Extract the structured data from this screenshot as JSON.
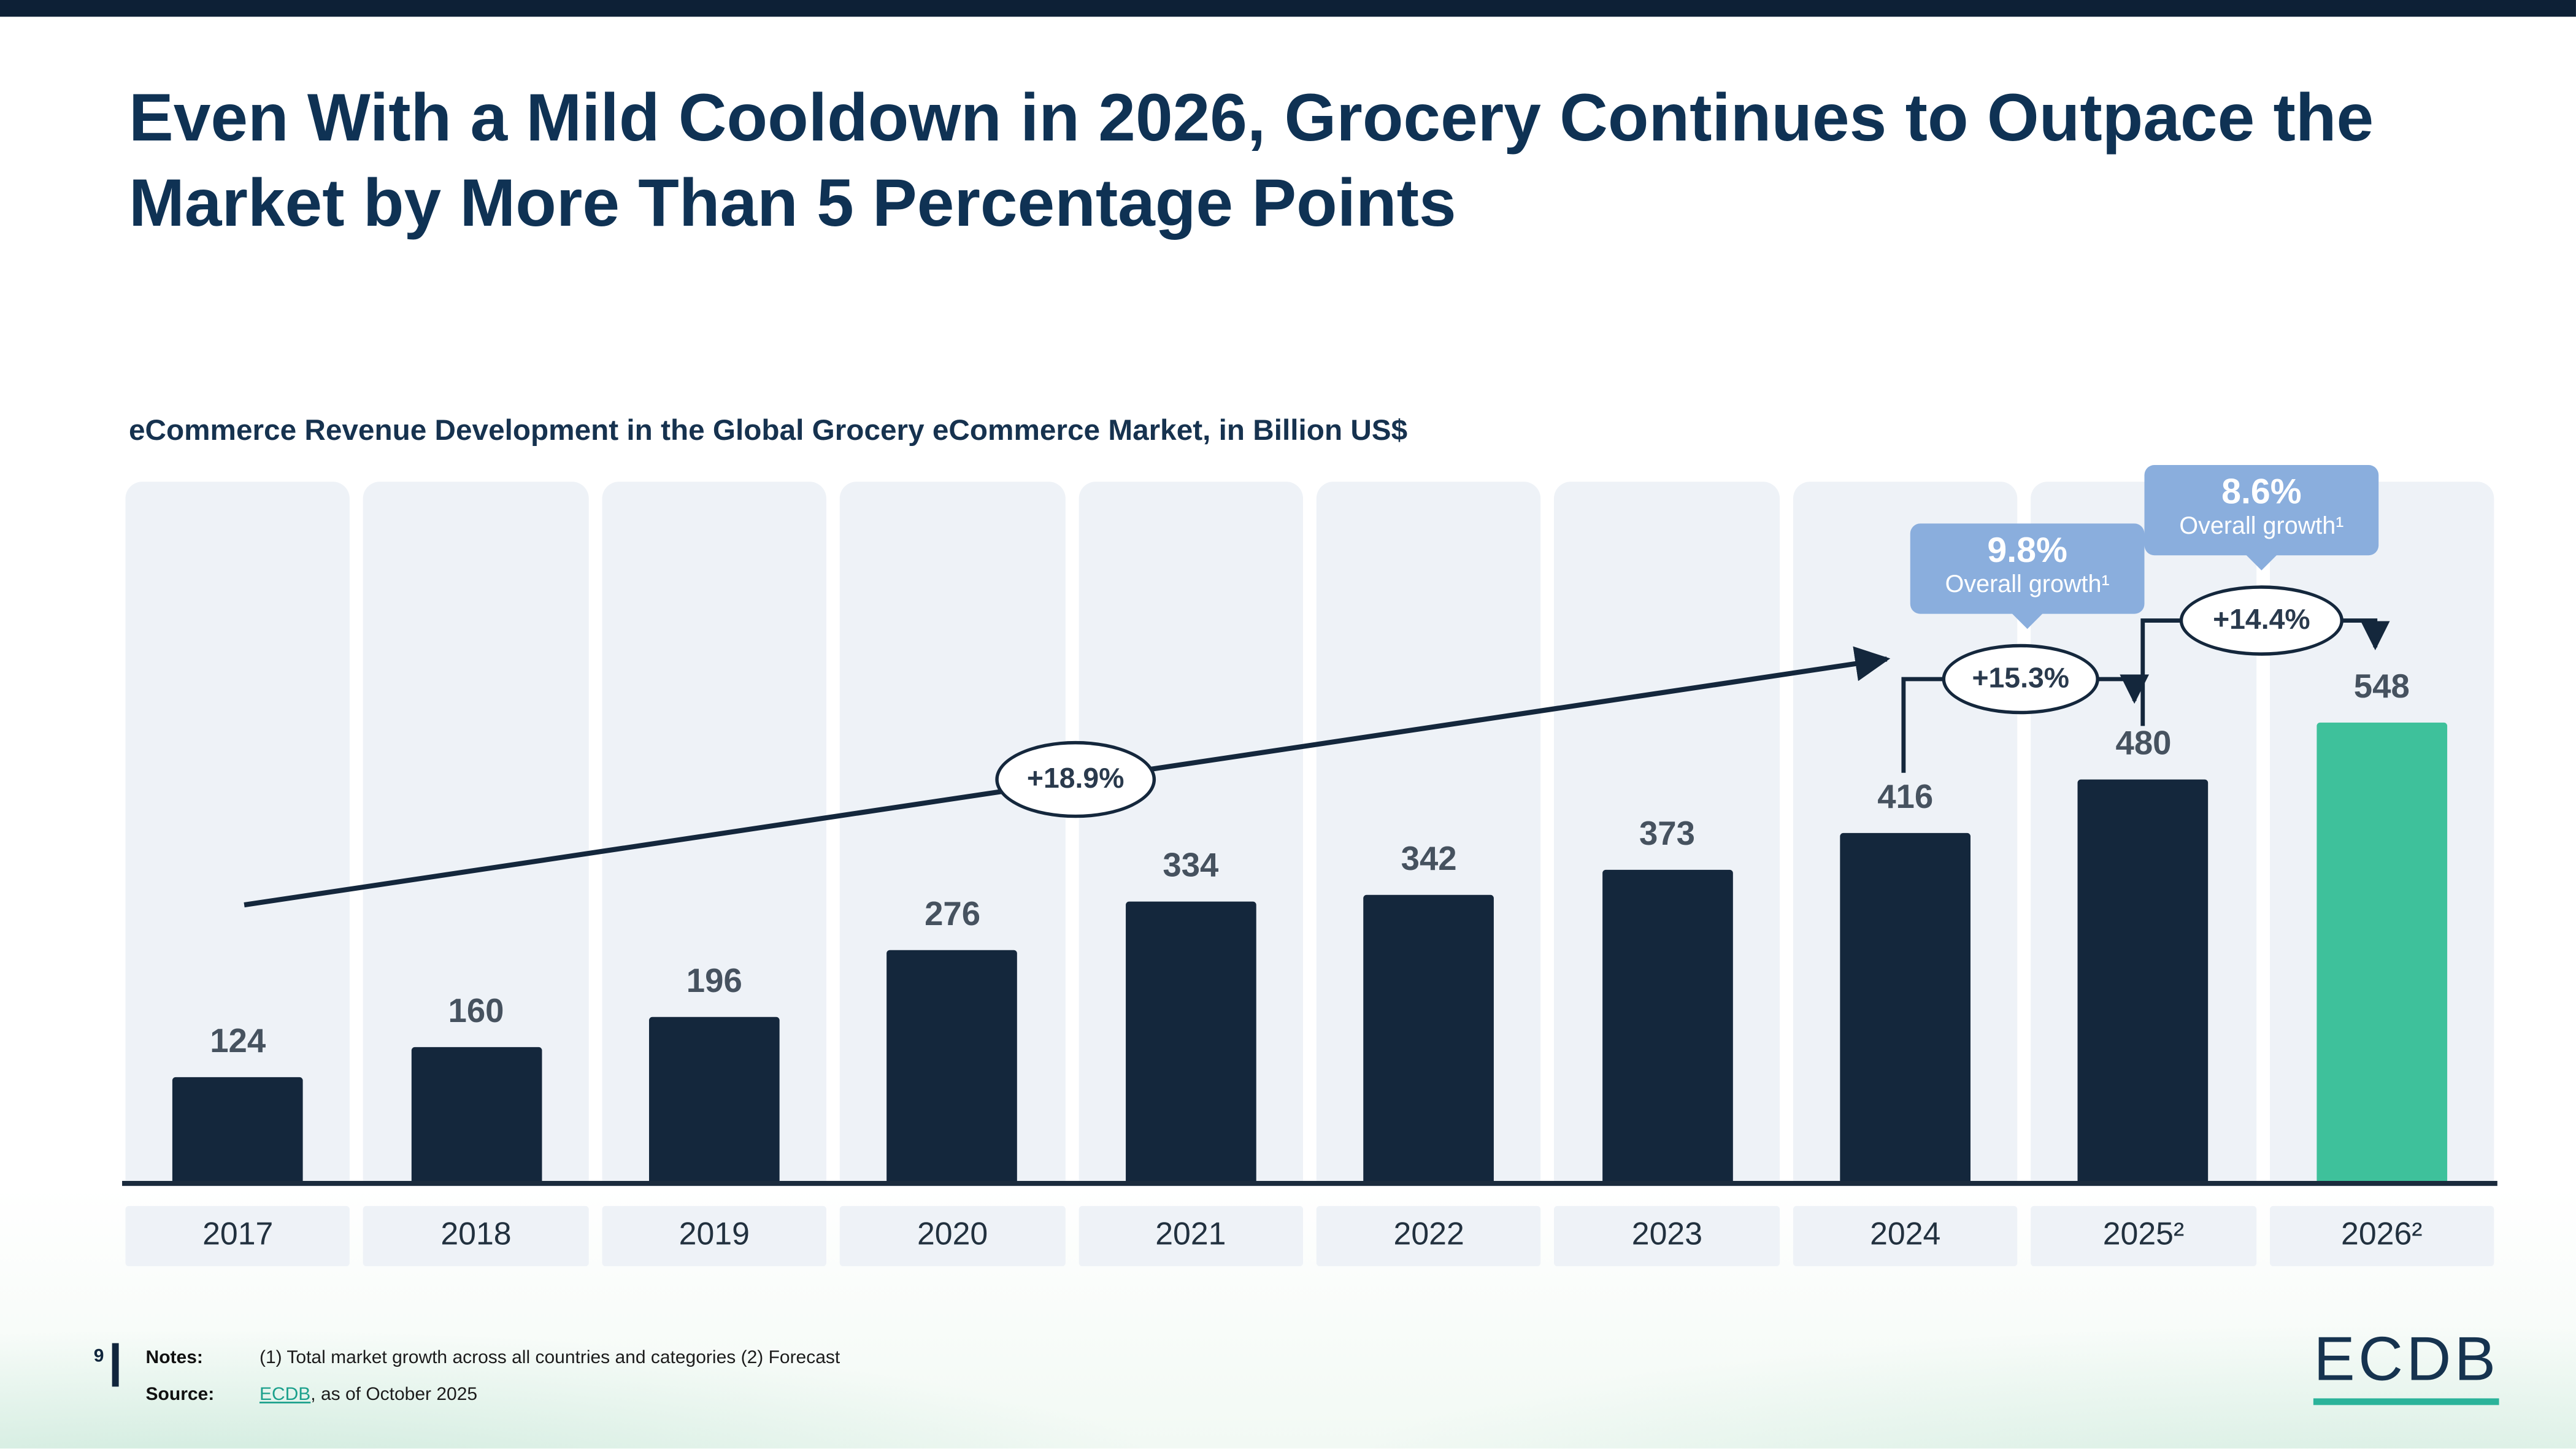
{
  "header": {
    "title": "Even With a Mild Cooldown in 2026, Grocery Continues to Outpace the Market by More Than 5 Percentage Points"
  },
  "chart_data": {
    "type": "bar",
    "title": "eCommerce Revenue Development in the Global Grocery eCommerce Market, in Billion US$",
    "categories": [
      "2017",
      "2018",
      "2019",
      "2020",
      "2021",
      "2022",
      "2023",
      "2024",
      "2025²",
      "2026²"
    ],
    "values": [
      124,
      160,
      196,
      276,
      334,
      342,
      373,
      416,
      480,
      548
    ],
    "unit": "Billion US$",
    "ylim": [
      0,
      560
    ],
    "grid": false,
    "legend": "none",
    "highlight_category": "2026²",
    "annotations": {
      "cagr_arrow": {
        "label": "+18.9%",
        "from_category": "2017",
        "to_category": "2024"
      },
      "step_2024_2025": {
        "label": "+15.3%"
      },
      "step_2025_2026": {
        "label": "+14.4%"
      }
    },
    "callouts": [
      {
        "value": "9.8%",
        "caption": "Overall growth¹",
        "anchor": "2025²"
      },
      {
        "value": "8.6%",
        "caption": "Overall growth¹",
        "anchor": "2026²"
      }
    ]
  },
  "colors": {
    "navy": "#14273C",
    "title_navy": "#0F3254",
    "teal": "#3EC19B",
    "callout_blue": "#8AAEDD",
    "column_bg": "#EEF2F7",
    "link_teal": "#1BA08C",
    "logo_underline": "#2BB39A",
    "top_bar": "#0D2036"
  },
  "footer": {
    "page_number": "9",
    "notes_label": "Notes:",
    "notes": "(1) Total market growth across all countries and categories (2) Forecast",
    "source_label": "Source:",
    "source_link": "ECDB",
    "source_suffix": ", as of October 2025",
    "logo_text": "ECDB"
  }
}
